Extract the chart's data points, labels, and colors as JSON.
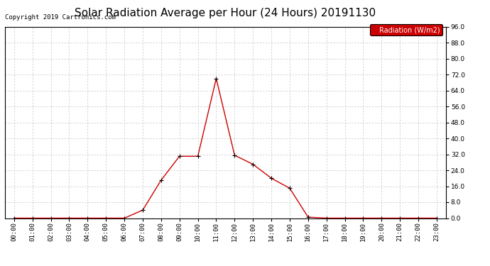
{
  "title": "Solar Radiation Average per Hour (24 Hours) 20191130",
  "copyright_text": "Copyright 2019 Cartronics.com",
  "legend_label": "Radiation (W/m2)",
  "hours": [
    "00:00",
    "01:00",
    "02:00",
    "03:00",
    "04:00",
    "05:00",
    "06:00",
    "07:00",
    "08:00",
    "09:00",
    "10:00",
    "11:00",
    "12:00",
    "13:00",
    "14:00",
    "15:00",
    "16:00",
    "17:00",
    "18:00",
    "19:00",
    "20:00",
    "21:00",
    "22:00",
    "23:00"
  ],
  "values": [
    0.0,
    0.0,
    0.0,
    0.0,
    0.0,
    0.0,
    0.0,
    4.0,
    19.0,
    31.0,
    31.0,
    70.0,
    31.5,
    27.0,
    20.0,
    15.0,
    0.5,
    0.0,
    0.0,
    0.0,
    0.0,
    0.0,
    0.0,
    0.0
  ],
  "line_color": "#cc0000",
  "marker_color": "#000000",
  "bg_color": "#ffffff",
  "grid_color": "#bbbbbb",
  "ylim": [
    0.0,
    96.0
  ],
  "yticks": [
    0.0,
    8.0,
    16.0,
    24.0,
    32.0,
    40.0,
    48.0,
    56.0,
    64.0,
    72.0,
    80.0,
    88.0,
    96.0
  ],
  "title_fontsize": 11,
  "tick_fontsize": 6.5,
  "legend_fontsize": 7,
  "copyright_fontsize": 6.5,
  "fig_width": 6.9,
  "fig_height": 3.75,
  "dpi": 100
}
